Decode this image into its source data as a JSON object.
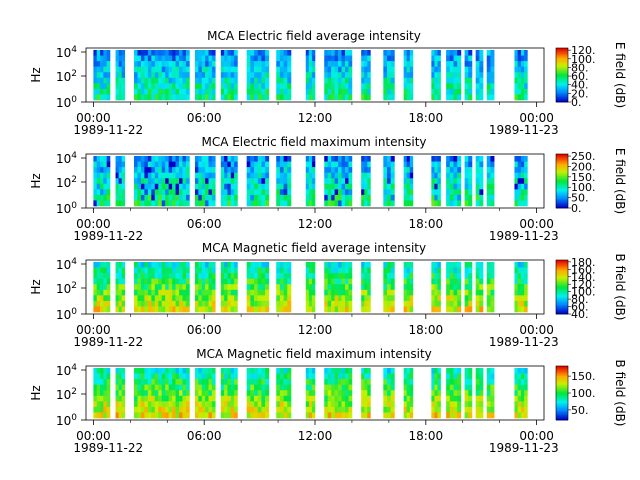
{
  "chart_data": [
    {
      "type": "heatmap",
      "title": "MCA  Electric field average intensity",
      "ylabel": "Hz",
      "y_scale": "log",
      "y_tick_labels": [
        "10^0",
        "10^2",
        "10^4"
      ],
      "x_tick_labels": [
        "00:00",
        "06:00",
        "12:00",
        "18:00",
        "00:00"
      ],
      "x_date_labels": [
        "1989-11-22",
        "1989-11-23"
      ],
      "colorbar": {
        "label": "E field (dB)",
        "ticks": [
          "0.",
          "20.",
          "40.",
          "60.",
          "80.",
          "100.",
          "120."
        ],
        "range": [
          0,
          125
        ]
      },
      "typical_level": 40
    },
    {
      "type": "heatmap",
      "title": "MCA  Electric field maximum intensity",
      "ylabel": "Hz",
      "y_scale": "log",
      "y_tick_labels": [
        "10^0",
        "10^2",
        "10^4"
      ],
      "x_tick_labels": [
        "00:00",
        "06:00",
        "12:00",
        "18:00",
        "00:00"
      ],
      "x_date_labels": [
        "1989-11-22",
        "1989-11-23"
      ],
      "colorbar": {
        "label": "E field (dB)",
        "ticks": [
          "0.",
          "50.",
          "100.",
          "150.",
          "200.",
          "250."
        ],
        "range": [
          0,
          260
        ]
      },
      "typical_level": 90
    },
    {
      "type": "heatmap",
      "title": "MCA  Magnetic field average intensity",
      "ylabel": "Hz",
      "y_scale": "log",
      "y_tick_labels": [
        "10^0",
        "10^2",
        "10^4"
      ],
      "x_tick_labels": [
        "00:00",
        "06:00",
        "12:00",
        "18:00",
        "00:00"
      ],
      "x_date_labels": [
        "1989-11-22",
        "1989-11-23"
      ],
      "colorbar": {
        "label": "B field (dB)",
        "ticks": [
          "40.",
          "60.",
          "80.",
          "100.",
          "120.",
          "140.",
          "160.",
          "180."
        ],
        "range": [
          40,
          185
        ]
      },
      "typical_level": 110
    },
    {
      "type": "heatmap",
      "title": "MCA  Magnetic field maximum intensity",
      "ylabel": "Hz",
      "y_scale": "log",
      "y_tick_labels": [
        "10^0",
        "10^2",
        "10^4"
      ],
      "x_tick_labels": [
        "00:00",
        "06:00",
        "12:00",
        "18:00",
        "00:00"
      ],
      "x_date_labels": [
        "1989-11-22",
        "1989-11-23"
      ],
      "colorbar": {
        "label": "B field (dB)",
        "ticks": [
          "50.",
          "100.",
          "150."
        ],
        "range": [
          20,
          180
        ]
      },
      "typical_level": 100
    }
  ]
}
